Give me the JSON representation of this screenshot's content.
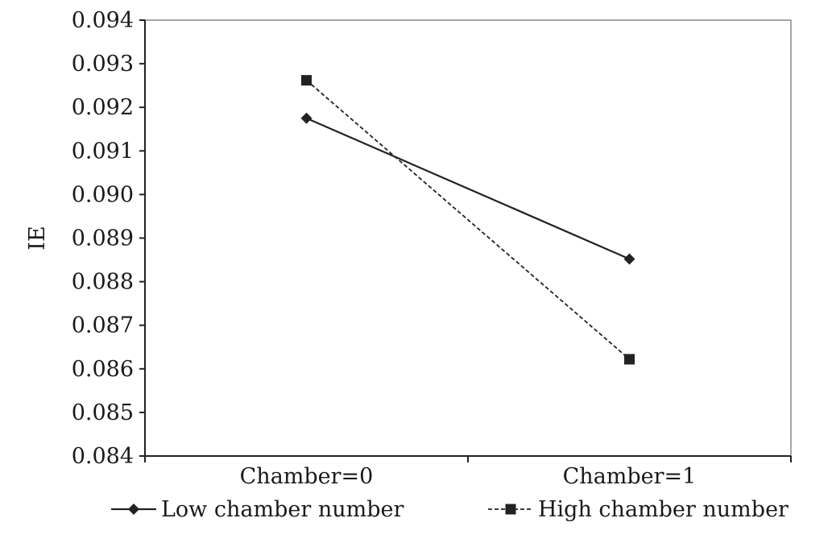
{
  "chart_data": {
    "type": "line",
    "categories": [
      "Chamber=0",
      "Chamber=1"
    ],
    "series": [
      {
        "name": "Low chamber number",
        "values": [
          0.09175,
          0.08852
        ],
        "marker": "diamond",
        "line": "solid"
      },
      {
        "name": "High chamber number",
        "values": [
          0.09262,
          0.08622
        ],
        "marker": "square",
        "line": "dashed"
      }
    ],
    "title": "",
    "xlabel": "",
    "ylabel": "IE",
    "ylim": [
      0.084,
      0.094
    ],
    "yticks": [
      "0.084",
      "0.085",
      "0.086",
      "0.087",
      "0.088",
      "0.089",
      "0.090",
      "0.091",
      "0.092",
      "0.093",
      "0.094"
    ],
    "grid": false,
    "legend_position": "bottom",
    "colors": {
      "line": "#222222",
      "axis": "#222222",
      "background": "#ffffff"
    }
  }
}
